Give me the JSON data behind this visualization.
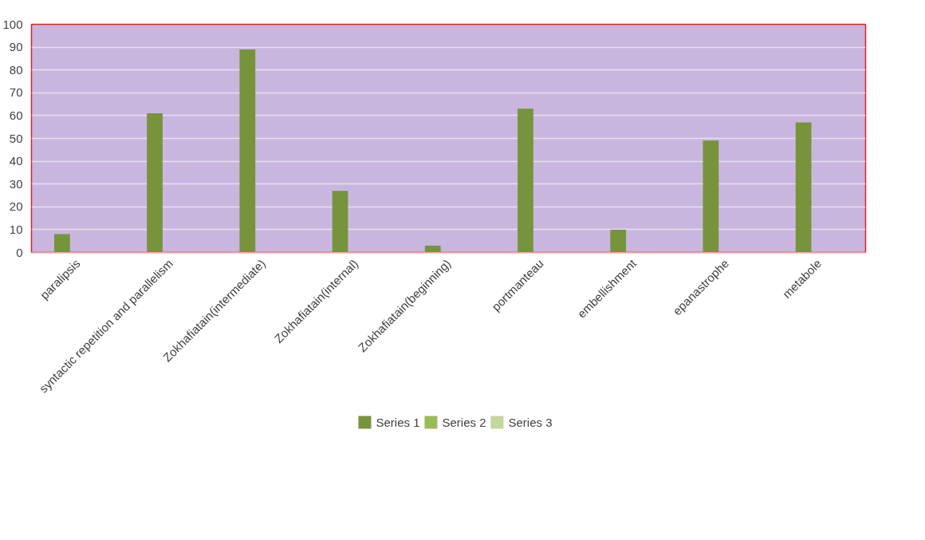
{
  "chart_data": {
    "type": "bar",
    "categories": [
      "paralipsis",
      "syntactic repetition and parallelism",
      "Zokhafiatain(intermediate)",
      "Zokhafiatain(internal)",
      "Zokhafiatain(beginning)",
      "portmanteau",
      "embellishment",
      "epanastrophe",
      "metabole"
    ],
    "series": [
      {
        "name": "Series 1",
        "color": "#77933c",
        "values": [
          8,
          61,
          89,
          27,
          3,
          63,
          10,
          49,
          57
        ]
      },
      {
        "name": "Series 2",
        "color": "#9bbb59",
        "values": [
          null,
          null,
          null,
          null,
          null,
          null,
          null,
          null,
          null
        ]
      },
      {
        "name": "Series 3",
        "color": "#c3d69b",
        "values": [
          null,
          null,
          null,
          null,
          null,
          null,
          null,
          null,
          null
        ]
      }
    ],
    "ylim": [
      0,
      100
    ],
    "yticks": [
      0,
      10,
      20,
      30,
      40,
      50,
      60,
      70,
      80,
      90,
      100
    ],
    "grid": "y",
    "legend": "bottom"
  }
}
